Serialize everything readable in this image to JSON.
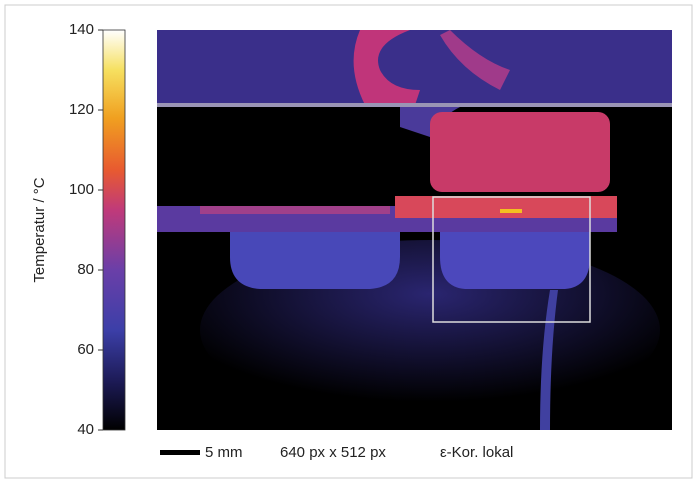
{
  "colorbar": {
    "label": "Temperatur / °C",
    "lim": [
      40,
      140
    ],
    "ticks": [
      40,
      60,
      80,
      100,
      120,
      140
    ]
  },
  "footer": {
    "scale": "5 mm",
    "resolution": "640 px x 512 px",
    "correction": "ε-Kor. lokal"
  }
}
